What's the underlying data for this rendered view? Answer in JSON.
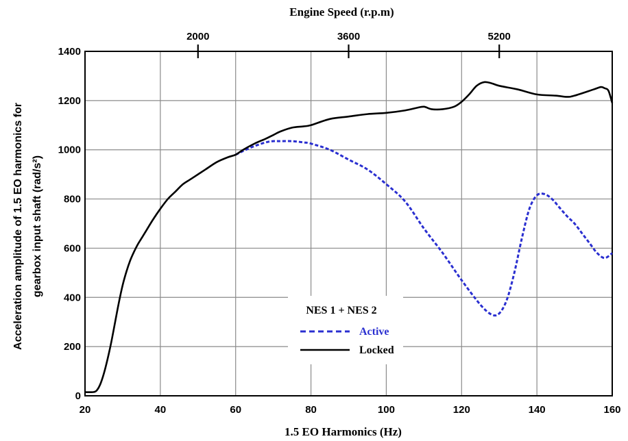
{
  "chart_data": {
    "type": "line",
    "title": "",
    "xlabel": "1.5 EO Harmonics (Hz)",
    "ylabel_line1": "Acceleration amplitude of 1.5 EO harmonics for",
    "ylabel_line2": "gearbox input shaft (rad/s²)",
    "top_xlabel": "Engine Speed (r.p.m)",
    "xlim": [
      20,
      160
    ],
    "ylim": [
      0,
      1400
    ],
    "xticks": [
      20,
      40,
      60,
      80,
      100,
      120,
      140,
      160
    ],
    "yticks": [
      0,
      200,
      400,
      600,
      800,
      1000,
      1200,
      1400
    ],
    "top_ticks": [
      {
        "label": "2000",
        "x": 50
      },
      {
        "label": "3600",
        "x": 90
      },
      {
        "label": "5200",
        "x": 130
      }
    ],
    "grid": true,
    "legend": {
      "title": "NES 1 + NES 2",
      "position": "bottom-center",
      "entries": [
        {
          "label": "Active",
          "color": "#2a2fd0",
          "style": "dashed"
        },
        {
          "label": "Locked",
          "color": "#000000",
          "style": "solid"
        }
      ]
    },
    "series": [
      {
        "name": "Locked",
        "color": "#000000",
        "style": "solid",
        "x": [
          20,
          22,
          23,
          24,
          25,
          26,
          27,
          28,
          29,
          30,
          31,
          32,
          33,
          34,
          35,
          36,
          38,
          40,
          42,
          44,
          46,
          48,
          50,
          52,
          55,
          58,
          60,
          62,
          65,
          68,
          70,
          72,
          75,
          78,
          80,
          85,
          90,
          95,
          100,
          105,
          108,
          110,
          112,
          115,
          118,
          120,
          122,
          124,
          126,
          128,
          130,
          135,
          140,
          145,
          148,
          150,
          155,
          157,
          158,
          159,
          160
        ],
        "y": [
          15,
          15,
          20,
          45,
          90,
          150,
          220,
          300,
          380,
          450,
          505,
          550,
          585,
          615,
          640,
          665,
          715,
          760,
          800,
          830,
          860,
          880,
          900,
          920,
          950,
          970,
          980,
          1000,
          1025,
          1045,
          1060,
          1075,
          1090,
          1095,
          1100,
          1125,
          1135,
          1145,
          1150,
          1160,
          1170,
          1175,
          1165,
          1165,
          1175,
          1195,
          1225,
          1260,
          1275,
          1270,
          1260,
          1245,
          1225,
          1220,
          1215,
          1220,
          1245,
          1255,
          1250,
          1240,
          1190
        ]
      },
      {
        "name": "Active",
        "color": "#2a2fd0",
        "style": "dashed",
        "x": [
          60,
          62,
          65,
          68,
          70,
          72,
          75,
          78,
          80,
          85,
          90,
          95,
          100,
          105,
          110,
          115,
          120,
          125,
          128,
          130,
          132,
          134,
          136,
          138,
          140,
          142,
          144,
          146,
          148,
          150,
          152,
          154,
          156,
          158,
          160
        ],
        "y": [
          980,
          995,
          1015,
          1030,
          1035,
          1035,
          1035,
          1030,
          1025,
          1000,
          960,
          920,
          860,
          790,
          680,
          580,
          470,
          370,
          330,
          335,
          390,
          500,
          640,
          760,
          815,
          820,
          800,
          765,
          730,
          700,
          660,
          620,
          580,
          560,
          580
        ]
      }
    ]
  }
}
